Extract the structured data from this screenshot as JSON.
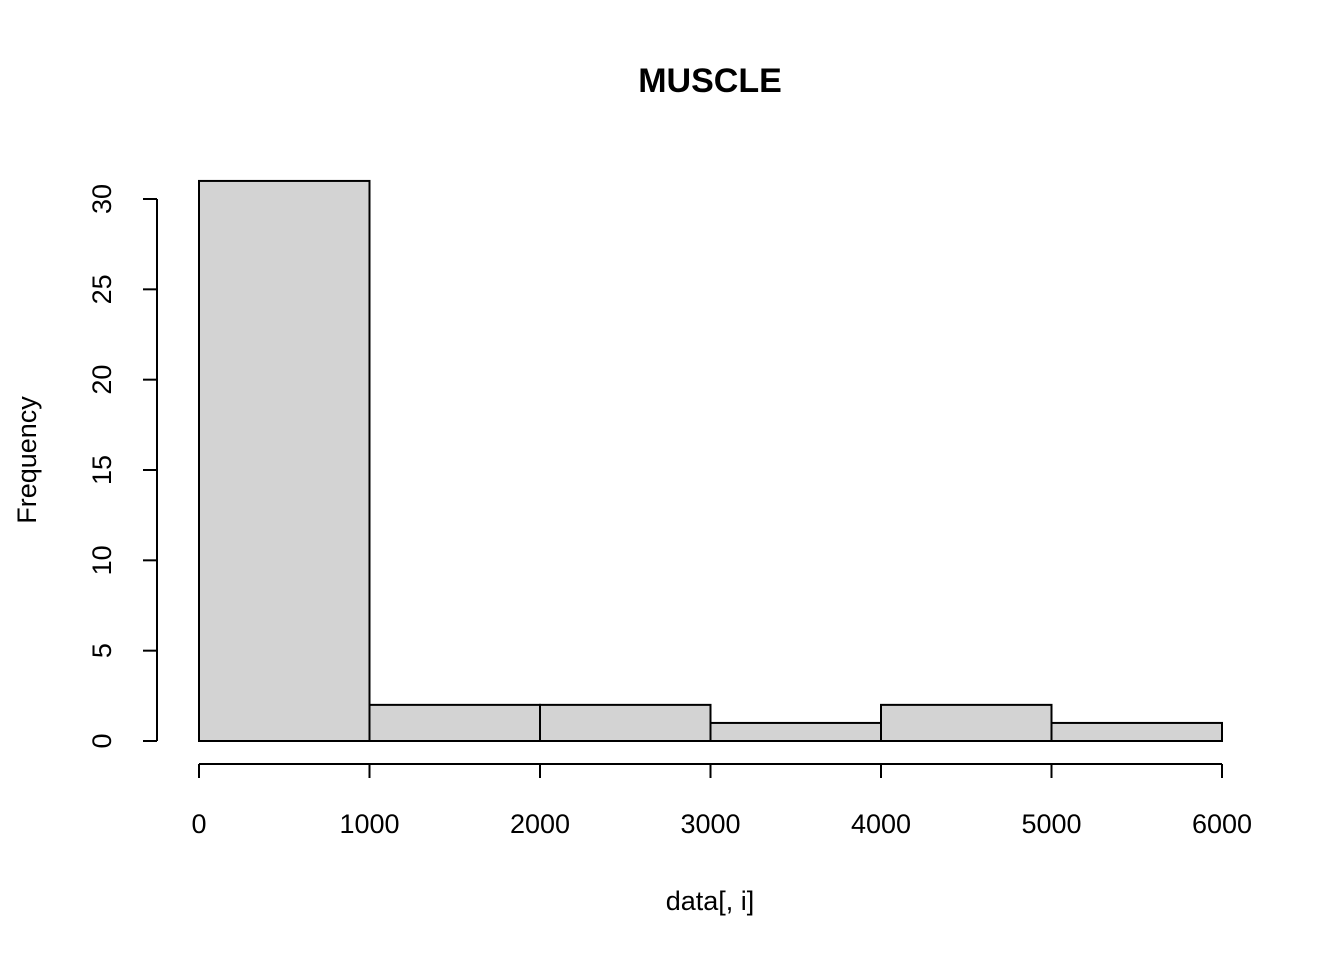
{
  "chart_data": {
    "type": "bar",
    "title": "MUSCLE",
    "xlabel": "data[, i]",
    "ylabel": "Frequency",
    "bins": [
      {
        "start": 0,
        "end": 1000,
        "count": 31
      },
      {
        "start": 1000,
        "end": 2000,
        "count": 2
      },
      {
        "start": 2000,
        "end": 3000,
        "count": 2
      },
      {
        "start": 3000,
        "end": 4000,
        "count": 1
      },
      {
        "start": 4000,
        "end": 5000,
        "count": 2
      },
      {
        "start": 5000,
        "end": 6000,
        "count": 1
      }
    ],
    "xlim": [
      0,
      6000
    ],
    "ylim": [
      0,
      31
    ],
    "x_ticks": [
      "0",
      "1000",
      "2000",
      "3000",
      "4000",
      "5000",
      "6000"
    ],
    "y_ticks": [
      "0",
      "5",
      "10",
      "15",
      "20",
      "25",
      "30"
    ],
    "bar_color": "#d3d3d3",
    "grid": false
  }
}
